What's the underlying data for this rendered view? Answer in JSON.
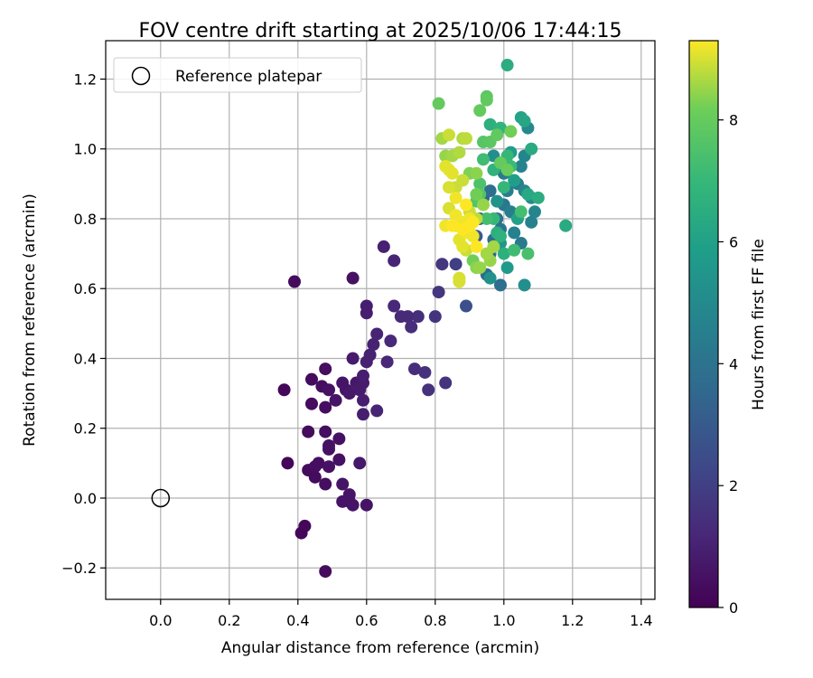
{
  "chart_data": {
    "type": "scatter",
    "title": "FOV centre drift starting at 2025/10/06 17:44:15",
    "xlabel": "Angular distance from reference (arcmin)",
    "ylabel": "Rotation from reference (arcmin)",
    "xlim": [
      -0.16,
      1.44
    ],
    "ylim": [
      -0.29,
      1.31
    ],
    "xticks": [
      "0.0",
      "0.2",
      "0.4",
      "0.6",
      "0.8",
      "1.0",
      "1.2",
      "1.4"
    ],
    "xtick_values": [
      0.0,
      0.2,
      0.4,
      0.6,
      0.8,
      1.0,
      1.2,
      1.4
    ],
    "yticks": [
      "−0.2",
      "0.0",
      "0.2",
      "0.4",
      "0.6",
      "0.8",
      "1.0",
      "1.2"
    ],
    "ytick_values": [
      -0.2,
      0.0,
      0.2,
      0.4,
      0.6,
      0.8,
      1.0,
      1.2
    ],
    "grid": true,
    "legend": {
      "placement": "top-left",
      "entries": [
        {
          "label": "Reference platepar",
          "marker": "open-circle",
          "x": 0.0,
          "y": 0.0
        }
      ]
    },
    "colorbar": {
      "label": "Hours from first FF file",
      "range": [
        0,
        9.3
      ],
      "ticks": [
        "0",
        "2",
        "4",
        "6",
        "8"
      ],
      "tick_values": [
        0,
        2,
        4,
        6,
        8
      ],
      "colormap": "viridis"
    },
    "points": [
      [
        0.36,
        0.31,
        0.2
      ],
      [
        0.37,
        0.1,
        0.2
      ],
      [
        0.39,
        0.62,
        0.3
      ],
      [
        0.41,
        -0.1,
        0.2
      ],
      [
        0.42,
        -0.08,
        0.2
      ],
      [
        0.43,
        0.08,
        0.3
      ],
      [
        0.43,
        0.19,
        0.3
      ],
      [
        0.44,
        0.34,
        0.3
      ],
      [
        0.44,
        0.27,
        0.3
      ],
      [
        0.45,
        0.06,
        0.3
      ],
      [
        0.45,
        0.09,
        0.4
      ],
      [
        0.46,
        0.1,
        0.4
      ],
      [
        0.47,
        0.32,
        0.4
      ],
      [
        0.48,
        0.26,
        0.4
      ],
      [
        0.48,
        0.19,
        0.4
      ],
      [
        0.48,
        0.04,
        0.4
      ],
      [
        0.48,
        -0.21,
        0.3
      ],
      [
        0.48,
        0.37,
        0.4
      ],
      [
        0.49,
        0.15,
        0.5
      ],
      [
        0.49,
        0.14,
        0.5
      ],
      [
        0.49,
        0.31,
        0.5
      ],
      [
        0.49,
        0.09,
        0.5
      ],
      [
        0.51,
        0.28,
        0.6
      ],
      [
        0.52,
        0.11,
        0.5
      ],
      [
        0.52,
        0.17,
        0.5
      ],
      [
        0.53,
        0.33,
        0.6
      ],
      [
        0.53,
        -0.01,
        0.6
      ],
      [
        0.53,
        0.04,
        0.6
      ],
      [
        0.54,
        0.31,
        0.6
      ],
      [
        0.55,
        -0.01,
        0.6
      ],
      [
        0.55,
        0.01,
        0.6
      ],
      [
        0.55,
        0.3,
        0.7
      ],
      [
        0.56,
        -0.02,
        0.6
      ],
      [
        0.56,
        0.4,
        0.8
      ],
      [
        0.56,
        0.63,
        0.5
      ],
      [
        0.57,
        0.33,
        0.7
      ],
      [
        0.58,
        0.1,
        0.7
      ],
      [
        0.58,
        0.31,
        0.8
      ],
      [
        0.59,
        0.33,
        0.8
      ],
      [
        0.59,
        0.35,
        0.9
      ],
      [
        0.59,
        0.28,
        0.9
      ],
      [
        0.59,
        0.24,
        0.9
      ],
      [
        0.6,
        0.39,
        1.0
      ],
      [
        0.6,
        0.55,
        0.9
      ],
      [
        0.6,
        0.53,
        0.9
      ],
      [
        0.6,
        -0.02,
        0.6
      ],
      [
        0.61,
        0.41,
        1.0
      ],
      [
        0.62,
        0.44,
        1.0
      ],
      [
        0.63,
        0.47,
        1.1
      ],
      [
        0.63,
        0.25,
        1.1
      ],
      [
        0.65,
        0.72,
        1.0
      ],
      [
        0.66,
        0.39,
        1.2
      ],
      [
        0.67,
        0.45,
        1.2
      ],
      [
        0.68,
        0.68,
        1.1
      ],
      [
        0.68,
        0.55,
        1.2
      ],
      [
        0.7,
        0.52,
        1.3
      ],
      [
        0.72,
        0.52,
        1.3
      ],
      [
        0.73,
        0.49,
        1.4
      ],
      [
        0.74,
        0.37,
        1.4
      ],
      [
        0.75,
        0.52,
        1.4
      ],
      [
        0.77,
        0.36,
        1.5
      ],
      [
        0.78,
        0.31,
        1.5
      ],
      [
        0.8,
        0.52,
        1.6
      ],
      [
        0.81,
        0.59,
        1.7
      ],
      [
        0.82,
        0.67,
        1.7
      ],
      [
        0.83,
        0.33,
        1.6
      ],
      [
        0.86,
        0.67,
        2.0
      ],
      [
        0.89,
        0.55,
        2.6
      ],
      [
        0.92,
        0.75,
        3.0
      ],
      [
        0.93,
        0.8,
        3.2
      ],
      [
        0.94,
        0.86,
        3.4
      ],
      [
        0.95,
        0.64,
        3.6
      ],
      [
        0.96,
        0.88,
        3.8
      ],
      [
        0.96,
        0.7,
        3.5
      ],
      [
        0.97,
        0.74,
        3.7
      ],
      [
        0.98,
        0.8,
        3.9
      ],
      [
        0.99,
        0.61,
        3.8
      ],
      [
        0.99,
        0.77,
        4.0
      ],
      [
        1.0,
        0.84,
        4.2
      ],
      [
        1.0,
        0.93,
        4.3
      ],
      [
        1.01,
        0.88,
        4.4
      ],
      [
        1.02,
        0.82,
        4.5
      ],
      [
        1.03,
        0.76,
        4.6
      ],
      [
        1.04,
        0.9,
        4.4
      ],
      [
        1.05,
        0.73,
        4.3
      ],
      [
        1.05,
        0.95,
        4.7
      ],
      [
        1.06,
        0.88,
        4.8
      ],
      [
        1.06,
        0.98,
        4.8
      ],
      [
        1.07,
        1.06,
        4.9
      ],
      [
        1.08,
        0.79,
        4.6
      ],
      [
        1.08,
        0.86,
        5.0
      ],
      [
        1.09,
        0.82,
        4.8
      ],
      [
        1.06,
        0.61,
        5.2
      ],
      [
        0.96,
        0.63,
        5.3
      ],
      [
        0.97,
        0.98,
        5.2
      ],
      [
        0.98,
        0.85,
        5.4
      ],
      [
        0.99,
        0.73,
        5.5
      ],
      [
        1.0,
        0.95,
        5.6
      ],
      [
        1.01,
        0.66,
        5.7
      ],
      [
        1.02,
        0.99,
        5.8
      ],
      [
        1.03,
        0.91,
        5.9
      ],
      [
        1.04,
        0.8,
        6.0
      ],
      [
        1.05,
        1.09,
        6.1
      ],
      [
        1.06,
        1.08,
        6.2
      ],
      [
        1.07,
        0.87,
        6.3
      ],
      [
        1.08,
        1.0,
        6.4
      ],
      [
        1.1,
        0.86,
        6.5
      ],
      [
        1.18,
        0.78,
        6.4
      ],
      [
        1.01,
        1.24,
        6.5
      ],
      [
        0.96,
        1.07,
        6.6
      ],
      [
        0.97,
        0.94,
        6.7
      ],
      [
        0.98,
        0.76,
        6.6
      ],
      [
        0.99,
        1.06,
        6.8
      ],
      [
        1.0,
        0.89,
        6.9
      ],
      [
        1.01,
        0.98,
        7.0
      ],
      [
        1.02,
        0.95,
        7.1
      ],
      [
        1.03,
        0.71,
        7.2
      ],
      [
        1.05,
        0.82,
        7.3
      ],
      [
        1.07,
        0.7,
        7.4
      ],
      [
        0.94,
        0.97,
        7.2
      ],
      [
        0.95,
        0.8,
        7.3
      ],
      [
        0.93,
        0.9,
        7.5
      ],
      [
        0.92,
        0.85,
        7.6
      ],
      [
        0.94,
        1.02,
        7.7
      ],
      [
        0.96,
        1.02,
        7.8
      ],
      [
        0.98,
        1.04,
        7.9
      ],
      [
        0.99,
        0.96,
        8.0
      ],
      [
        1.01,
        0.94,
        8.1
      ],
      [
        1.02,
        1.05,
        8.2
      ],
      [
        0.95,
        1.15,
        7.8
      ],
      [
        0.93,
        1.11,
        8.0
      ],
      [
        0.95,
        1.14,
        7.9
      ],
      [
        0.9,
        0.93,
        8.3
      ],
      [
        0.91,
        0.68,
        8.2
      ],
      [
        0.92,
        0.93,
        8.4
      ],
      [
        0.92,
        0.66,
        8.4
      ],
      [
        0.93,
        0.66,
        8.5
      ],
      [
        0.94,
        0.84,
        8.5
      ],
      [
        0.95,
        0.7,
        8.6
      ],
      [
        0.96,
        0.68,
        8.5
      ],
      [
        0.97,
        0.72,
        8.6
      ],
      [
        0.81,
        1.13,
        8.0
      ],
      [
        0.83,
        0.98,
        8.5
      ],
      [
        0.85,
        0.98,
        8.6
      ],
      [
        0.87,
        0.99,
        8.7
      ],
      [
        0.89,
        1.03,
        8.8
      ],
      [
        0.88,
        0.91,
        8.9
      ],
      [
        0.86,
        0.89,
        8.9
      ],
      [
        0.84,
        0.89,
        9.0
      ],
      [
        0.84,
        0.83,
        9.0
      ],
      [
        0.86,
        0.78,
        9.0
      ],
      [
        0.87,
        0.74,
        9.1
      ],
      [
        0.88,
        0.72,
        9.1
      ],
      [
        0.89,
        0.76,
        9.2
      ],
      [
        0.9,
        0.8,
        9.2
      ],
      [
        0.91,
        0.75,
        9.2
      ],
      [
        0.92,
        0.72,
        9.3
      ],
      [
        0.83,
        0.95,
        9.1
      ],
      [
        0.84,
        0.94,
        9.1
      ],
      [
        0.85,
        0.93,
        9.1
      ],
      [
        0.86,
        0.86,
        9.2
      ],
      [
        0.87,
        0.63,
        9.0
      ],
      [
        0.87,
        0.62,
        9.0
      ],
      [
        0.83,
        0.78,
        9.2
      ],
      [
        0.84,
        1.04,
        8.9
      ],
      [
        0.88,
        1.03,
        8.7
      ],
      [
        0.86,
        0.81,
        9.2
      ],
      [
        0.85,
        0.78,
        9.3
      ],
      [
        0.88,
        0.77,
        9.3
      ],
      [
        0.89,
        0.84,
        9.3
      ],
      [
        0.9,
        0.78,
        9.3
      ],
      [
        0.91,
        0.79,
        9.3
      ],
      [
        0.82,
        1.03,
        8.6
      ],
      [
        0.92,
        0.8,
        8.8
      ],
      [
        0.9,
        0.82,
        8.9
      ],
      [
        0.89,
        0.71,
        8.9
      ],
      [
        0.88,
        0.79,
        9.2
      ],
      [
        0.92,
        0.87,
        8.2
      ],
      [
        0.93,
        0.87,
        7.6
      ],
      [
        0.97,
        0.8,
        7.0
      ],
      [
        0.99,
        0.75,
        6.7
      ],
      [
        1.0,
        0.7,
        6.6
      ]
    ]
  }
}
